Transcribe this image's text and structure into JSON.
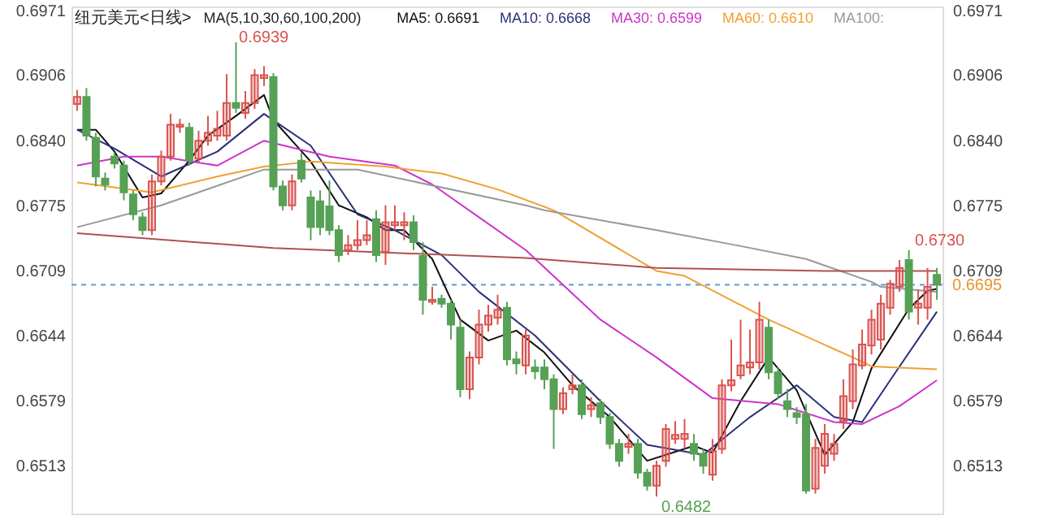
{
  "chart_data": {
    "type": "candlestick",
    "title": "纽元美元<日线>",
    "subtitle": "MA(5,10,30,60,100,200)",
    "categories": [
      null,
      null,
      null,
      null,
      null,
      null,
      null,
      null,
      null,
      null,
      null,
      null,
      null,
      null,
      null,
      null,
      null,
      null,
      null,
      null,
      null,
      null,
      null,
      null,
      null,
      null,
      null,
      null,
      null,
      null,
      null,
      null,
      null,
      null,
      null,
      null,
      null,
      null,
      null,
      null,
      null,
      null,
      null,
      null,
      null,
      null,
      null,
      null,
      null,
      null,
      null,
      null,
      null,
      null,
      null,
      null,
      null,
      null,
      null,
      null,
      null,
      null,
      null,
      null,
      null,
      null,
      null,
      null,
      null,
      null,
      null,
      null,
      null,
      null,
      null,
      null,
      null,
      null,
      null,
      null,
      null,
      null,
      null,
      null,
      null,
      null,
      null,
      null,
      null,
      null,
      null,
      null,
      null
    ],
    "ohlc": [
      [
        0.6877,
        0.6891,
        0.687,
        0.6884
      ],
      [
        0.6884,
        0.6893,
        0.684,
        0.6845
      ],
      [
        0.6843,
        0.6848,
        0.6794,
        0.6804
      ],
      [
        0.6802,
        0.6808,
        0.679,
        0.6796
      ],
      [
        0.6824,
        0.6828,
        0.6812,
        0.6817
      ],
      [
        0.6815,
        0.682,
        0.678,
        0.6788
      ],
      [
        0.6786,
        0.679,
        0.676,
        0.6766
      ],
      [
        0.6763,
        0.6768,
        0.6745,
        0.675
      ],
      [
        0.675,
        0.6806,
        0.6745,
        0.6799
      ],
      [
        0.6799,
        0.683,
        0.6795,
        0.6824
      ],
      [
        0.6824,
        0.6867,
        0.682,
        0.6856
      ],
      [
        0.6854,
        0.6862,
        0.6848,
        0.6856
      ],
      [
        0.6853,
        0.6858,
        0.6815,
        0.682
      ],
      [
        0.6822,
        0.685,
        0.6818,
        0.684
      ],
      [
        0.684,
        0.6865,
        0.6835,
        0.6848
      ],
      [
        0.6845,
        0.687,
        0.684,
        0.6852
      ],
      [
        0.6845,
        0.6907,
        0.684,
        0.6878
      ],
      [
        0.6878,
        0.6939,
        0.6868,
        0.6873
      ],
      [
        0.6868,
        0.689,
        0.6862,
        0.6878
      ],
      [
        0.6878,
        0.6912,
        0.6872,
        0.6906
      ],
      [
        0.6903,
        0.6915,
        0.6895,
        0.6906
      ],
      [
        0.6904,
        0.6908,
        0.679,
        0.6794
      ],
      [
        0.6794,
        0.68,
        0.677,
        0.6775
      ],
      [
        0.6775,
        0.6806,
        0.677,
        0.6799
      ],
      [
        0.682,
        0.6828,
        0.6798,
        0.6802
      ],
      [
        0.6783,
        0.679,
        0.674,
        0.6753
      ],
      [
        0.6779,
        0.679,
        0.6745,
        0.6753
      ],
      [
        0.6774,
        0.68,
        0.6745,
        0.675
      ],
      [
        0.675,
        0.6755,
        0.6718,
        0.6725
      ],
      [
        0.673,
        0.6745,
        0.6725,
        0.6735
      ],
      [
        0.6735,
        0.676,
        0.673,
        0.674
      ],
      [
        0.674,
        0.676,
        0.6735,
        0.6745
      ],
      [
        0.6761,
        0.677,
        0.6718,
        0.6725
      ],
      [
        0.6728,
        0.6775,
        0.6715,
        0.6758
      ],
      [
        0.6755,
        0.6775,
        0.675,
        0.6758
      ],
      [
        0.6755,
        0.6768,
        0.674,
        0.6758
      ],
      [
        0.6758,
        0.6765,
        0.673,
        0.6738
      ],
      [
        0.6724,
        0.6738,
        0.6665,
        0.668
      ],
      [
        0.6678,
        0.6693,
        0.6675,
        0.668
      ],
      [
        0.6681,
        0.6685,
        0.6672,
        0.6676
      ],
      [
        0.6676,
        0.668,
        0.664,
        0.6655
      ],
      [
        0.6652,
        0.666,
        0.6582,
        0.659
      ],
      [
        0.659,
        0.6628,
        0.658,
        0.6622
      ],
      [
        0.6622,
        0.667,
        0.6615,
        0.6655
      ],
      [
        0.6655,
        0.6675,
        0.6648,
        0.6664
      ],
      [
        0.6662,
        0.6685,
        0.6655,
        0.667
      ],
      [
        0.6672,
        0.6678,
        0.6614,
        0.662
      ],
      [
        0.662,
        0.6628,
        0.6605,
        0.6616
      ],
      [
        0.6614,
        0.665,
        0.6605,
        0.6644
      ],
      [
        0.6612,
        0.662,
        0.66,
        0.6608
      ],
      [
        0.6612,
        0.662,
        0.659,
        0.66
      ],
      [
        0.66,
        0.6605,
        0.653,
        0.657
      ],
      [
        0.657,
        0.6592,
        0.6565,
        0.6586
      ],
      [
        0.659,
        0.6605,
        0.6585,
        0.6594
      ],
      [
        0.6594,
        0.66,
        0.656,
        0.6565
      ],
      [
        0.657,
        0.6582,
        0.6562,
        0.6574
      ],
      [
        0.6576,
        0.658,
        0.6555,
        0.6562
      ],
      [
        0.6562,
        0.6566,
        0.653,
        0.6535
      ],
      [
        0.6535,
        0.654,
        0.6512,
        0.6518
      ],
      [
        0.6532,
        0.6545,
        0.6525,
        0.6535
      ],
      [
        0.6535,
        0.654,
        0.65,
        0.6506
      ],
      [
        0.6506,
        0.651,
        0.6488,
        0.6493
      ],
      [
        0.6493,
        0.6518,
        0.6482,
        0.6513
      ],
      [
        0.6518,
        0.6555,
        0.6512,
        0.655
      ],
      [
        0.654,
        0.6558,
        0.6535,
        0.6544
      ],
      [
        0.654,
        0.656,
        0.653,
        0.6545
      ],
      [
        0.6535,
        0.6545,
        0.6518,
        0.6525
      ],
      [
        0.6525,
        0.653,
        0.6505,
        0.6513
      ],
      [
        0.6504,
        0.654,
        0.6498,
        0.6528
      ],
      [
        0.653,
        0.66,
        0.6525,
        0.6594
      ],
      [
        0.6594,
        0.664,
        0.6588,
        0.6599
      ],
      [
        0.6604,
        0.666,
        0.66,
        0.6614
      ],
      [
        0.6612,
        0.665,
        0.6605,
        0.6617
      ],
      [
        0.6617,
        0.6678,
        0.661,
        0.666
      ],
      [
        0.6652,
        0.666,
        0.66,
        0.6607
      ],
      [
        0.6607,
        0.6612,
        0.658,
        0.6586
      ],
      [
        0.6578,
        0.659,
        0.6562,
        0.657
      ],
      [
        0.6566,
        0.6572,
        0.6555,
        0.6562
      ],
      [
        0.6565,
        0.6575,
        0.6485,
        0.6488
      ],
      [
        0.649,
        0.654,
        0.6485,
        0.6531
      ],
      [
        0.6513,
        0.6555,
        0.6505,
        0.6545
      ],
      [
        0.6525,
        0.6545,
        0.6518,
        0.6535
      ],
      [
        0.6558,
        0.66,
        0.655,
        0.6583
      ],
      [
        0.6578,
        0.663,
        0.657,
        0.6615
      ],
      [
        0.6614,
        0.665,
        0.661,
        0.6635
      ],
      [
        0.6634,
        0.667,
        0.6625,
        0.666
      ],
      [
        0.664,
        0.6685,
        0.663,
        0.6676
      ],
      [
        0.6672,
        0.67,
        0.6665,
        0.6696
      ],
      [
        0.6693,
        0.672,
        0.6688,
        0.6712
      ],
      [
        0.672,
        0.673,
        0.666,
        0.6668
      ],
      [
        0.6672,
        0.669,
        0.6655,
        0.6676
      ],
      [
        0.6672,
        0.6712,
        0.666,
        0.6693
      ],
      [
        0.6705,
        0.6712,
        0.668,
        0.6695
      ]
    ],
    "colors": [
      "#d9534f",
      "#56a156",
      "#56a156",
      "#56a156",
      "#56a156",
      "#56a156",
      "#56a156",
      "#56a156",
      "#d9534f",
      "#d9534f",
      "#d9534f",
      "#d9534f",
      "#56a156",
      "#d9534f",
      "#d9534f",
      "#d9534f",
      "#d9534f",
      "#56a156",
      "#d9534f",
      "#d9534f",
      "#d9534f",
      "#56a156",
      "#56a156",
      "#d9534f",
      "#56a156",
      "#56a156",
      "#56a156",
      "#56a156",
      "#56a156",
      "#d9534f",
      "#d9534f",
      "#d9534f",
      "#56a156",
      "#d9534f",
      "#d9534f",
      "#d9534f",
      "#56a156",
      "#56a156",
      "#d9534f",
      "#56a156",
      "#56a156",
      "#56a156",
      "#d9534f",
      "#d9534f",
      "#d9534f",
      "#d9534f",
      "#56a156",
      "#56a156",
      "#d9534f",
      "#56a156",
      "#56a156",
      "#56a156",
      "#d9534f",
      "#d9534f",
      "#56a156",
      "#d9534f",
      "#56a156",
      "#56a156",
      "#56a156",
      "#d9534f",
      "#56a156",
      "#56a156",
      "#d9534f",
      "#d9534f",
      "#d9534f",
      "#d9534f",
      "#56a156",
      "#56a156",
      "#d9534f",
      "#d9534f",
      "#d9534f",
      "#d9534f",
      "#d9534f",
      "#d9534f",
      "#56a156",
      "#56a156",
      "#56a156",
      "#56a156",
      "#56a156",
      "#d9534f",
      "#d9534f",
      "#d9534f",
      "#d9534f",
      "#d9534f",
      "#d9534f",
      "#d9534f",
      "#d9534f",
      "#d9534f",
      "#d9534f",
      "#56a156",
      "#d9534f",
      "#d9534f",
      "#56a156"
    ],
    "series": [
      {
        "name": "MA5: 0.6691",
        "type": "line",
        "color": "#111111",
        "values": [
          0.6851,
          null,
          0.6851,
          null,
          0.6829,
          null,
          null,
          0.6783,
          null,
          0.6787,
          null,
          null,
          0.682,
          null,
          0.6845,
          null,
          null,
          0.6865,
          null,
          null,
          0.6886,
          0.6861,
          null,
          null,
          null,
          0.6819,
          null,
          null,
          0.6775,
          null,
          null,
          0.6763,
          null,
          0.675,
          null,
          0.675,
          null,
          null,
          0.6721,
          null,
          null,
          0.666,
          null,
          null,
          0.6639,
          null,
          null,
          0.6649,
          null,
          null,
          0.6627,
          null,
          null,
          0.6594,
          null,
          null,
          null,
          0.6562,
          null,
          null,
          null,
          0.6518,
          null,
          0.6524,
          null,
          null,
          0.6533,
          null,
          0.6526,
          null,
          null,
          0.6578,
          null,
          null,
          0.6622,
          null,
          null,
          0.6589,
          null,
          null,
          0.6524,
          null,
          null,
          0.6557,
          null,
          0.6611,
          null,
          null,
          null,
          0.6671,
          null,
          0.6689,
          0.6691
        ]
      },
      {
        "name": "MA10: 0.6668",
        "type": "line",
        "color": "#2a2f7a",
        "values": [
          0.6851,
          null,
          null,
          null,
          0.6832,
          null,
          null,
          null,
          null,
          0.6804,
          null,
          null,
          null,
          null,
          null,
          0.6829,
          null,
          null,
          null,
          null,
          0.6867,
          null,
          null,
          null,
          null,
          0.6835,
          null,
          null,
          null,
          null,
          0.6766,
          null,
          null,
          null,
          0.675,
          null,
          null,
          null,
          null,
          0.6725,
          null,
          null,
          null,
          0.6688,
          null,
          null,
          null,
          null,
          null,
          0.6644,
          null,
          null,
          null,
          null,
          null,
          null,
          0.6578,
          null,
          null,
          null,
          null,
          0.6534,
          null,
          null,
          null,
          null,
          null,
          0.6524,
          null,
          null,
          null,
          null,
          0.6562,
          null,
          null,
          null,
          null,
          0.6594,
          null,
          null,
          null,
          0.6562,
          null,
          null,
          0.6557,
          null,
          null,
          0.6599,
          null,
          null,
          null,
          null,
          0.6668
        ]
      },
      {
        "name": "MA30: 0.6599",
        "type": "line",
        "color": "#cc33cc",
        "values": [
          0.6815,
          null,
          null,
          null,
          null,
          0.6824,
          null,
          null,
          null,
          0.6824,
          null,
          null,
          null,
          null,
          null,
          0.6815,
          null,
          null,
          null,
          null,
          0.684,
          null,
          null,
          null,
          null,
          null,
          null,
          0.6824,
          null,
          null,
          null,
          null,
          null,
          null,
          0.6815,
          null,
          null,
          null,
          0.6796,
          null,
          null,
          null,
          null,
          0.6763,
          null,
          null,
          null,
          null,
          0.673,
          null,
          null,
          null,
          null,
          null,
          null,
          null,
          0.666,
          null,
          null,
          null,
          null,
          null,
          0.6622,
          null,
          null,
          null,
          null,
          null,
          0.6581,
          null,
          null,
          null,
          null,
          null,
          null,
          0.6575,
          null,
          null,
          null,
          null,
          null,
          0.6557,
          null,
          null,
          0.6555,
          null,
          null,
          null,
          0.6573,
          null,
          null,
          null,
          0.6599
        ]
      },
      {
        "name": "MA60: 0.6610",
        "type": "line",
        "color": "#f0a030",
        "values": [
          0.6798,
          null,
          null,
          null,
          null,
          null,
          null,
          null,
          0.6788,
          null,
          null,
          null,
          null,
          null,
          null,
          0.6804,
          null,
          null,
          null,
          null,
          0.6814,
          null,
          null,
          null,
          null,
          0.6819,
          null,
          null,
          null,
          null,
          null,
          null,
          null,
          0.6814,
          null,
          null,
          null,
          null,
          null,
          0.6807,
          null,
          null,
          null,
          null,
          null,
          0.6791,
          null,
          null,
          null,
          null,
          null,
          0.677,
          null,
          null,
          null,
          null,
          null,
          null,
          null,
          null,
          null,
          null,
          0.6709,
          null,
          null,
          0.6704,
          null,
          null,
          null,
          null,
          null,
          null,
          null,
          null,
          0.666,
          null,
          null,
          null,
          null,
          null,
          null,
          null,
          null,
          0.6622,
          null,
          0.6613,
          null,
          null,
          null,
          null,
          null,
          null,
          0.661
        ]
      },
      {
        "name": "MA100:",
        "type": "line",
        "color": "#999999",
        "values": [
          0.6753,
          null,
          null,
          null,
          null,
          null,
          null,
          null,
          null,
          0.6775,
          null,
          null,
          null,
          null,
          null,
          null,
          null,
          null,
          null,
          null,
          0.6811,
          null,
          null,
          null,
          null,
          null,
          null,
          null,
          null,
          null,
          0.6811,
          null,
          null,
          null,
          null,
          null,
          null,
          null,
          null,
          null,
          null,
          null,
          null,
          null,
          null,
          null,
          null,
          null,
          0.6775,
          null,
          0.677,
          null,
          null,
          null,
          null,
          null,
          null,
          null,
          null,
          null,
          null,
          null,
          0.675,
          null,
          null,
          null,
          null,
          null,
          null,
          null,
          null,
          0.6734,
          null,
          null,
          null,
          null,
          null,
          null,
          0.6721,
          null,
          null,
          null,
          null,
          null,
          null,
          0.6698,
          0.6693,
          null,
          null,
          null,
          null,
          null,
          0.6688
        ]
      },
      {
        "type": "line",
        "color": "#b05050",
        "values": [
          0.6747,
          null,
          null,
          null,
          null,
          null,
          null,
          null,
          null,
          null,
          null,
          null,
          null,
          null,
          null,
          null,
          null,
          null,
          null,
          null,
          null,
          0.6732,
          null,
          null,
          null,
          null,
          null,
          null,
          null,
          null,
          null,
          null,
          null,
          null,
          null,
          null,
          null,
          null,
          null,
          null,
          null,
          null,
          null,
          null,
          null,
          null,
          null,
          null,
          0.6722,
          null,
          null,
          null,
          null,
          null,
          null,
          null,
          null,
          null,
          null,
          null,
          null,
          null,
          0.6712,
          null,
          null,
          null,
          null,
          null,
          null,
          null,
          null,
          null,
          null,
          null,
          null,
          null,
          null,
          null,
          null,
          null,
          0.6709,
          null,
          null,
          null,
          null,
          null,
          null,
          null,
          null,
          null,
          null,
          null,
          0.6709
        ]
      }
    ],
    "ylim": [
      0.6465,
      0.6975
    ],
    "yticks": [
      0.6971,
      0.6906,
      {
        "value": 0.684,
        "label": "0.6840"
      },
      0.6775,
      0.6709,
      0.6644,
      0.6579,
      0.6513
    ],
    "y2lim": [
      0.6465,
      0.6975
    ],
    "y2ticks": [
      0.6971,
      0.6906,
      {
        "value": 0.684,
        "label": "0.6840"
      },
      0.6775,
      0.6709,
      0.6644,
      0.6579,
      0.6513
    ],
    "tick_labels": "y",
    "grid": false,
    "ref_lines": [
      {
        "axis": "y",
        "value": 0.6695,
        "label": "0.6695",
        "color": "#5b9bd5",
        "line_style": "dashed"
      }
    ],
    "annotations": [
      "0.6939",
      "0.6730",
      "0.6482"
    ]
  }
}
